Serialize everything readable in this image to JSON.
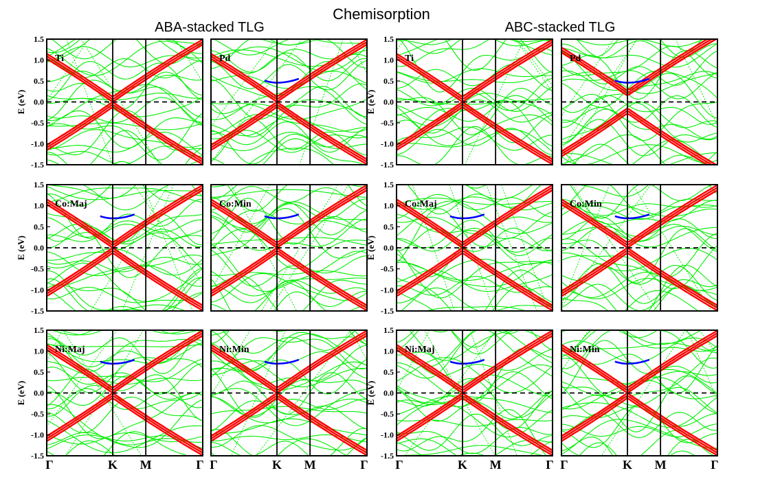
{
  "figure": {
    "title": "Chemisorption",
    "group_titles": [
      "ABA-stacked TLG",
      "ABC-stacked TLG"
    ],
    "y_axis_label": "E (eV)",
    "y_ticks": [
      "1.5",
      "1.0",
      "0.5",
      "0.0",
      "-0.5",
      "-1.0",
      "-1.5"
    ],
    "k_labels": [
      "Γ",
      "K",
      "M",
      "Γ"
    ]
  },
  "chart_data": [
    {
      "type": "line",
      "group": "ABA-stacked TLG",
      "panel": "Ti",
      "ylabel": "E (eV)",
      "ylim": [
        -1.5,
        1.5
      ],
      "x_ticks": [
        "Γ",
        "K",
        "M",
        "Γ"
      ],
      "fermi_level": 0.0,
      "k_gap_eV": 0.0
    },
    {
      "type": "line",
      "group": "ABA-stacked TLG",
      "panel": "Pd",
      "ylabel": "E (eV)",
      "ylim": [
        -1.5,
        1.5
      ],
      "x_ticks": [
        "Γ",
        "K",
        "M",
        "Γ"
      ],
      "fermi_level": 0.0,
      "k_gap_eV": 0.0
    },
    {
      "type": "line",
      "group": "ABC-stacked TLG",
      "panel": "Ti",
      "ylabel": "E (eV)",
      "ylim": [
        -1.5,
        1.5
      ],
      "x_ticks": [
        "Γ",
        "K",
        "M",
        "Γ"
      ],
      "fermi_level": 0.0,
      "k_gap_eV": 0.0
    },
    {
      "type": "line",
      "group": "ABC-stacked TLG",
      "panel": "Pd",
      "ylabel": "E (eV)",
      "ylim": [
        -1.5,
        1.5
      ],
      "x_ticks": [
        "Γ",
        "K",
        "M",
        "Γ"
      ],
      "fermi_level": 0.0,
      "k_gap_eV": 0.3
    },
    {
      "type": "line",
      "group": "ABA-stacked TLG",
      "panel": "Co:Maj",
      "ylabel": "E (eV)",
      "ylim": [
        -1.5,
        1.5
      ],
      "x_ticks": [
        "Γ",
        "K",
        "M",
        "Γ"
      ],
      "fermi_level": 0.0,
      "k_gap_eV": 0.0
    },
    {
      "type": "line",
      "group": "ABA-stacked TLG",
      "panel": "Co:Min",
      "ylabel": "E (eV)",
      "ylim": [
        -1.5,
        1.5
      ],
      "x_ticks": [
        "Γ",
        "K",
        "M",
        "Γ"
      ],
      "fermi_level": 0.0,
      "k_gap_eV": 0.0
    },
    {
      "type": "line",
      "group": "ABC-stacked TLG",
      "panel": "Co:Maj",
      "ylabel": "E (eV)",
      "ylim": [
        -1.5,
        1.5
      ],
      "x_ticks": [
        "Γ",
        "K",
        "M",
        "Γ"
      ],
      "fermi_level": 0.0,
      "k_gap_eV": 0.0
    },
    {
      "type": "line",
      "group": "ABC-stacked TLG",
      "panel": "Co:Min",
      "ylabel": "E (eV)",
      "ylim": [
        -1.5,
        1.5
      ],
      "x_ticks": [
        "Γ",
        "K",
        "M",
        "Γ"
      ],
      "fermi_level": 0.0,
      "k_gap_eV": 0.0
    },
    {
      "type": "line",
      "group": "ABA-stacked TLG",
      "panel": "Ni:Maj",
      "ylabel": "E (eV)",
      "ylim": [
        -1.5,
        1.5
      ],
      "x_ticks": [
        "Γ",
        "K",
        "M",
        "Γ"
      ],
      "fermi_level": 0.0,
      "k_gap_eV": 0.0
    },
    {
      "type": "line",
      "group": "ABA-stacked TLG",
      "panel": "Ni:Min",
      "ylabel": "E (eV)",
      "ylim": [
        -1.5,
        1.5
      ],
      "x_ticks": [
        "Γ",
        "K",
        "M",
        "Γ"
      ],
      "fermi_level": 0.0,
      "k_gap_eV": 0.0
    },
    {
      "type": "line",
      "group": "ABC-stacked TLG",
      "panel": "Ni:Maj",
      "ylabel": "E (eV)",
      "ylim": [
        -1.5,
        1.5
      ],
      "x_ticks": [
        "Γ",
        "K",
        "M",
        "Γ"
      ],
      "fermi_level": 0.0,
      "k_gap_eV": 0.0
    },
    {
      "type": "line",
      "group": "ABC-stacked TLG",
      "panel": "Ni:Min",
      "ylabel": "E (eV)",
      "ylim": [
        -1.5,
        1.5
      ],
      "x_ticks": [
        "Γ",
        "K",
        "M",
        "Γ"
      ],
      "fermi_level": 0.0,
      "k_gap_eV": 0.0
    }
  ],
  "colors": {
    "graphene_bands": "#ff0000",
    "metal_d_bands": "#0000ff",
    "other_bands": "#00ee00",
    "fermi_line": "#000000",
    "frame": "#000000"
  }
}
